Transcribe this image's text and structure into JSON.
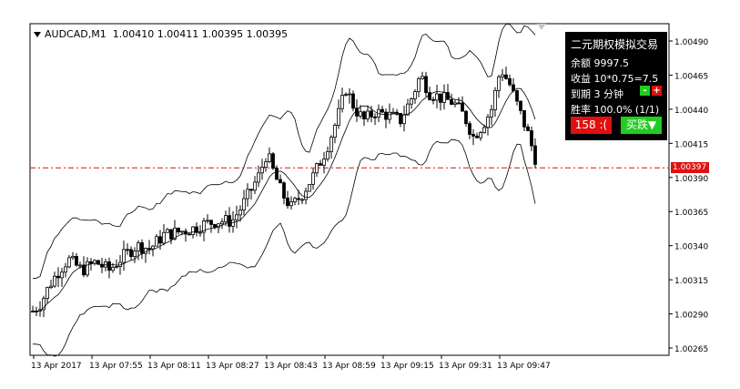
{
  "chart_header": {
    "symbol_label": "AUDCAD,M1",
    "ohlc_values": "1.00410 1.00411 1.00395 1.00395"
  },
  "chart_data": {
    "type": "candlestick",
    "indicator": "Bollinger Bands",
    "yticks": [
      "1.00490",
      "1.00465",
      "1.00440",
      "1.00415",
      "1.00390",
      "1.00365",
      "1.00340",
      "1.00315",
      "1.00290",
      "1.00265"
    ],
    "ylim": [
      1.0026,
      1.00505
    ],
    "xticks": [
      "13 Apr 2017",
      "13 Apr 07:55",
      "13 Apr 08:11",
      "13 Apr 08:27",
      "13 Apr 08:43",
      "13 Apr 08:59",
      "13 Apr 09:15",
      "13 Apr 09:31",
      "13 Apr 09:47"
    ],
    "current_price": "1.00397",
    "current_price_value": 1.00397,
    "colors": {
      "candle": "#000000",
      "band": "#000000",
      "price_line": "#e01010",
      "price_tag": "#e01010"
    }
  },
  "panel": {
    "title": "二元期权模拟交易",
    "balance": "余额 9997.5",
    "profit": "收益 10*0.75=7.5",
    "expiry": "到期 3 分钟",
    "minus_label": "-",
    "plus_label": "+",
    "winrate": "胜率 100.0% (1/1)",
    "put_button": "158 :(",
    "call_button": "买跌▼",
    "colors": {
      "background": "#000000",
      "red": "#e01010",
      "green": "#22cc22"
    }
  }
}
